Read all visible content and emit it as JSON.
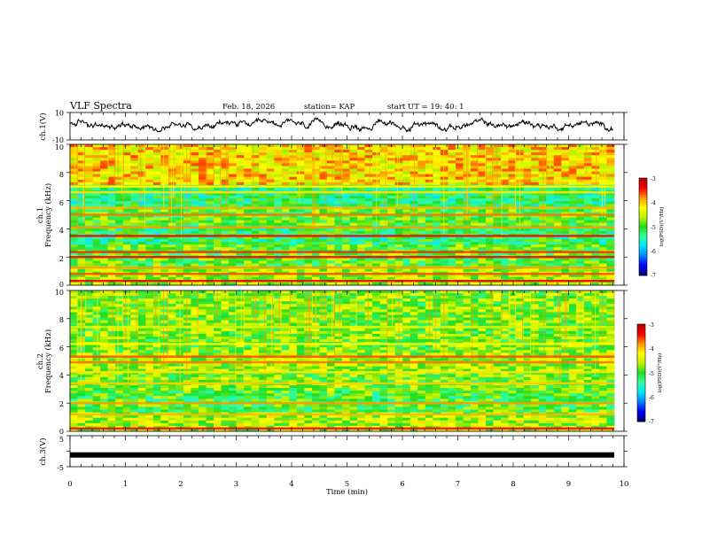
{
  "header": {
    "title": "VLF Spectra",
    "date": "Feb. 18, 2026",
    "station": "station= KAP",
    "start": "start  UT =   19: 40: 1"
  },
  "colors": {
    "colormap": [
      "#00007a",
      "#0000ff",
      "#0088ff",
      "#00e6ff",
      "#33ff99",
      "#22dd22",
      "#bff000",
      "#ffff00",
      "#ff9900",
      "#ff0000",
      "#b30000"
    ]
  },
  "chart_data": [
    {
      "id": "ch1-waveform",
      "type": "line",
      "ylabel": "ch.1(V)",
      "ylim": [
        -10,
        10
      ],
      "yticks": [
        "10",
        "-10"
      ],
      "xlim": [
        0,
        10
      ],
      "description_values": "noisy waveform roughly between -3 and 5 V over 0 to 9.8 min"
    },
    {
      "id": "ch1-spectrogram",
      "type": "heatmap",
      "ylabel_top": "ch.1",
      "ylabel": "Frequency (kHz)",
      "yticks": [
        "0",
        "2",
        "4",
        "6",
        "8",
        "10"
      ],
      "ylim": [
        0,
        10
      ],
      "xlim": [
        0,
        9.8
      ],
      "colorbar_label": "log(PSD)(V²/Hz)",
      "colorbar_ticks": [
        "-3",
        "-4",
        "-5",
        "-6",
        "-7"
      ],
      "colorbar_range": [
        -7,
        -3
      ],
      "bands": [
        {
          "khz": 0.3,
          "level": -3.3
        },
        {
          "khz": 0.8,
          "level": -3.6
        },
        {
          "khz": 1.25,
          "level": -3.8
        },
        {
          "khz": 2.0,
          "level": -3.4
        },
        {
          "khz": 2.35,
          "level": -3.5
        },
        {
          "khz": 3.5,
          "level": -3.4
        },
        {
          "khz": 4.1,
          "level": -3.8
        },
        {
          "khz": 5.0,
          "level": -3.7
        },
        {
          "khz": 5.5,
          "level": -3.9
        },
        {
          "khz": 6.6,
          "level": -4.1
        },
        {
          "khz": 7.0,
          "level": -4.2
        }
      ]
    },
    {
      "id": "ch2-spectrogram",
      "type": "heatmap",
      "ylabel_top": "ch.2",
      "ylabel": "Frequency (kHz)",
      "yticks": [
        "0",
        "2",
        "4",
        "6",
        "8",
        "10"
      ],
      "ylim": [
        0,
        10
      ],
      "xlim": [
        0,
        9.8
      ],
      "colorbar_label": "log(PSD)(V²/Hz)",
      "colorbar_ticks": [
        "-3",
        "-4",
        "-5",
        "-6",
        "-7"
      ],
      "colorbar_range": [
        -7,
        -3
      ],
      "bands": [
        {
          "khz": 0.2,
          "level": -3.4
        },
        {
          "khz": 1.2,
          "level": -3.9
        },
        {
          "khz": 2.0,
          "level": -3.8
        },
        {
          "khz": 3.4,
          "level": -4.0
        },
        {
          "khz": 4.2,
          "level": -4.1
        },
        {
          "khz": 4.9,
          "level": -3.7
        },
        {
          "khz": 5.3,
          "level": -3.6
        },
        {
          "khz": 6.2,
          "level": -4.2
        },
        {
          "khz": 7.4,
          "level": -4.4
        }
      ]
    },
    {
      "id": "ch3-waveform",
      "type": "line",
      "ylabel": "ch.3(V)",
      "ylim": [
        -5,
        5
      ],
      "yticks": [
        "5",
        "-5"
      ],
      "xlim": [
        0,
        10
      ],
      "constant_value": -1.2
    }
  ],
  "xaxis": {
    "label": "Time (min)",
    "ticks": [
      "0",
      "1",
      "2",
      "3",
      "4",
      "5",
      "6",
      "7",
      "8",
      "9",
      "10"
    ]
  }
}
